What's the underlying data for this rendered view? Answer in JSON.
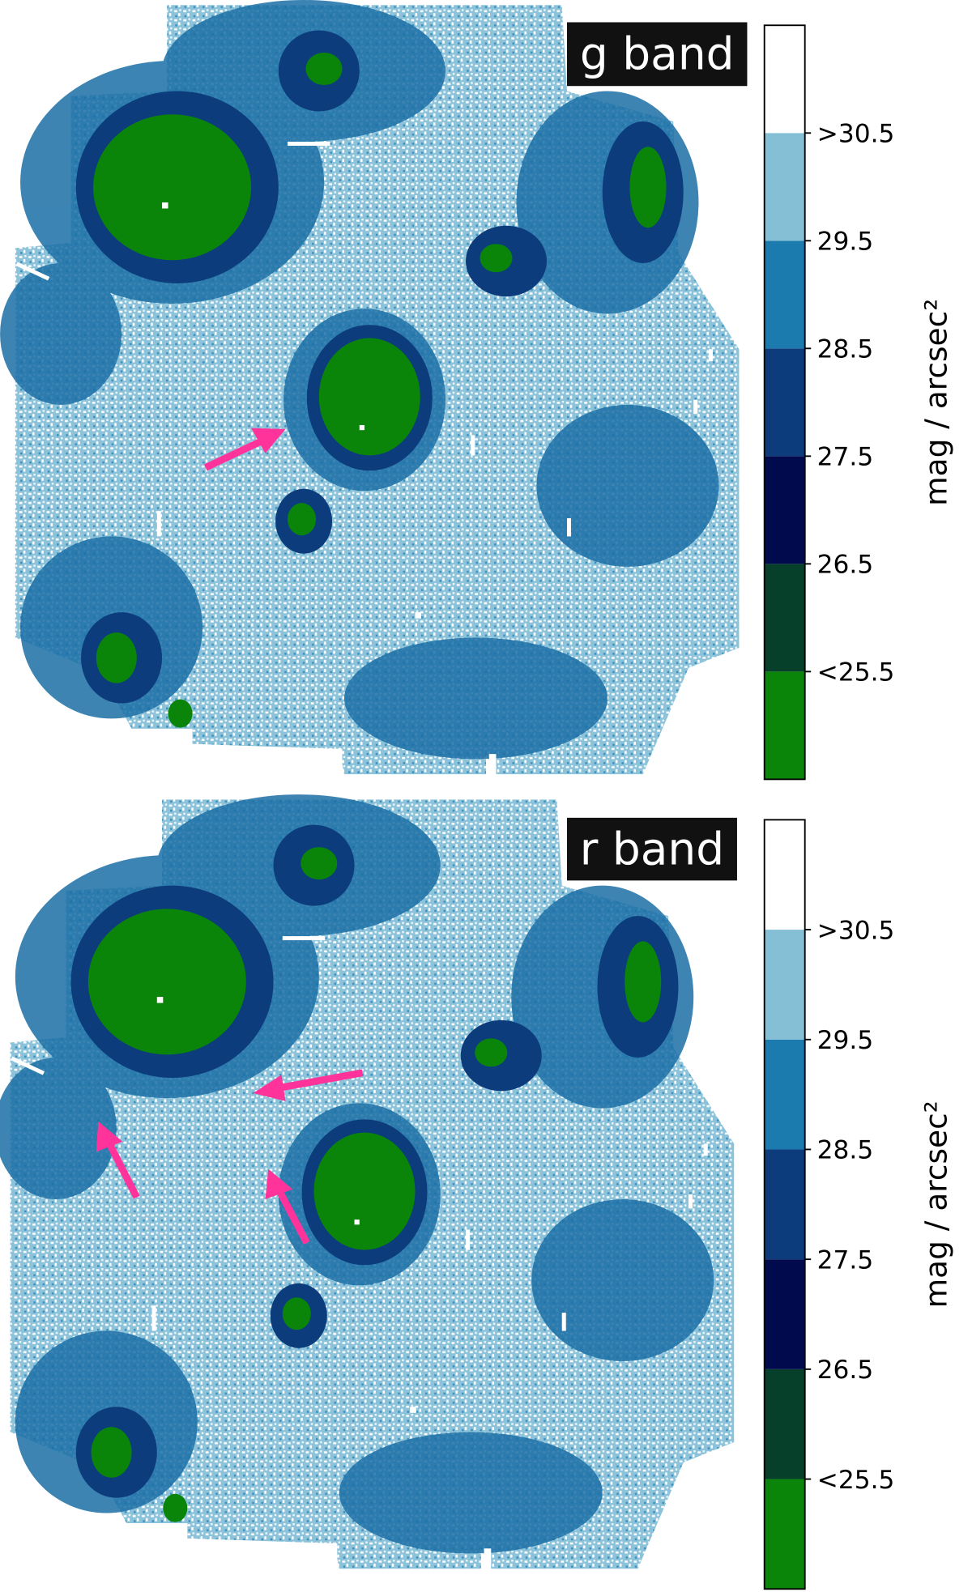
{
  "charts": [
    {
      "type": "image-map",
      "title": "g band",
      "colorbar": {
        "label": "mag / arcsec²",
        "lim": [
          24.5,
          31.5
        ],
        "levels": [
          24.5,
          25.5,
          26.5,
          27.5,
          28.5,
          29.5,
          30.5,
          31.5
        ],
        "colors": [
          "#0a850a",
          "#063f2a",
          "#020a4e",
          "#0d3c7c",
          "#1b7aae",
          "#85bfd6",
          "#ffffff"
        ],
        "ticks": [
          {
            "value": 25.5,
            "label": "<25.5"
          },
          26.5,
          27.5,
          28.5,
          29.5,
          {
            "value": 30.5,
            "label": ">30.5"
          }
        ]
      }
    },
    {
      "type": "image-map",
      "title": "r band",
      "colorbar": {
        "label": "mag / arcsec²",
        "lim": [
          24.5,
          31.5
        ],
        "levels": [
          24.5,
          25.5,
          26.5,
          27.5,
          28.5,
          29.5,
          30.5,
          31.5
        ],
        "colors": [
          "#0a850a",
          "#063f2a",
          "#020a4e",
          "#0d3c7c",
          "#1b7aae",
          "#85bfd6",
          "#ffffff"
        ],
        "ticks": [
          {
            "value": 25.5,
            "label": "<25.5"
          },
          26.5,
          27.5,
          28.5,
          29.5,
          {
            "value": 30.5,
            "label": ">30.5"
          }
        ]
      }
    }
  ]
}
